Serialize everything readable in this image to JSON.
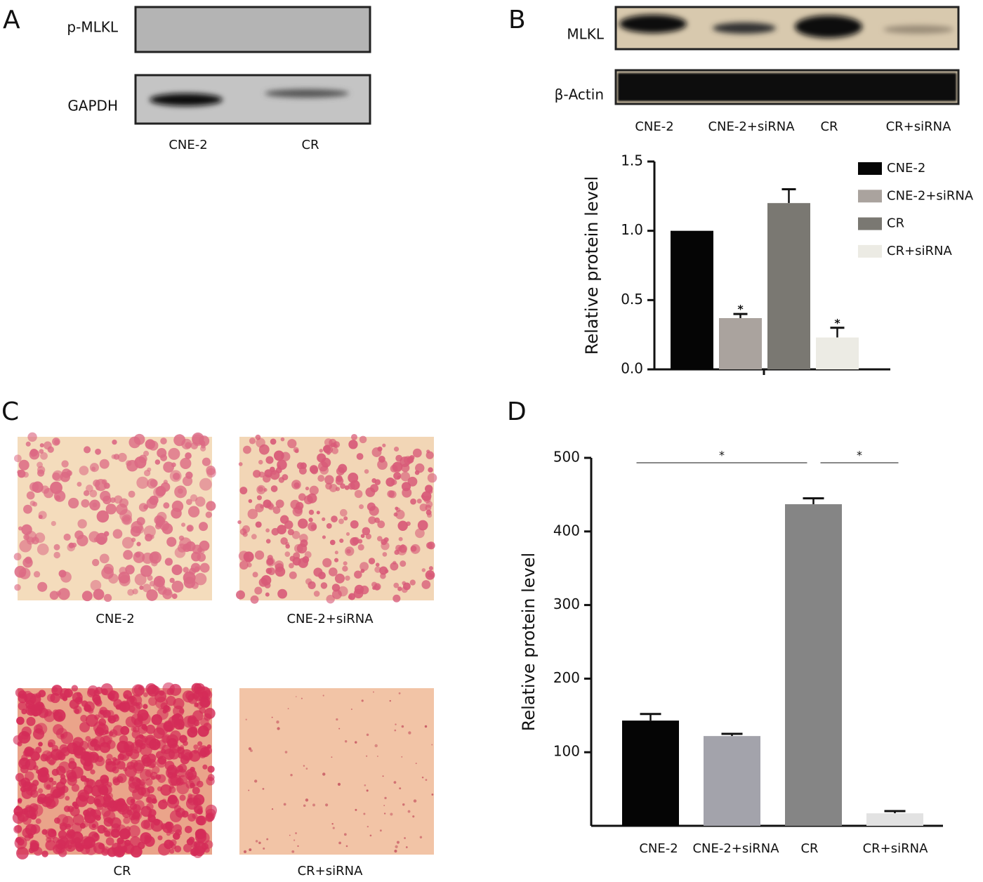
{
  "panels": {
    "A": {
      "letter": "A",
      "blots": [
        "p-MLKL",
        "GAPDH"
      ],
      "lanes": [
        "CNE-2",
        "CR"
      ]
    },
    "B": {
      "letter": "B",
      "blots": [
        "MLKL",
        "β-Actin"
      ],
      "lanes": [
        "CNE-2",
        "CNE-2+siRNA",
        "CR",
        "CR+siRNA"
      ]
    },
    "C": {
      "letter": "C",
      "images": [
        "CNE-2",
        "CNE-2+siRNA",
        "CR",
        "CR+siRNA"
      ]
    },
    "D": {
      "letter": "D"
    }
  },
  "chart_data": [
    {
      "type": "bar",
      "ylabel": "Relative protein level",
      "ylim": [
        0,
        1.5
      ],
      "yticks": [
        {
          "value": 0,
          "label": "0.0"
        },
        0.5,
        {
          "value": 1,
          "label": "1.0"
        },
        1.5
      ],
      "legend": "top-right",
      "series": [
        {
          "name": "CNE-2",
          "color": "#050505",
          "values": [
            1.0
          ],
          "errors": [
            0
          ]
        },
        {
          "name": "CNE-2+siRNA",
          "color": "#aaa39e",
          "values": [
            0.37
          ],
          "errors": [
            0.03
          ],
          "annotation": "*"
        },
        {
          "name": "CR",
          "color": "#7a7872",
          "values": [
            1.2
          ],
          "errors": [
            0.1
          ]
        },
        {
          "name": "CR+siRNA",
          "color": "#ecebe4",
          "values": [
            0.23
          ],
          "errors": [
            0.07
          ],
          "annotation": "*"
        }
      ]
    },
    {
      "type": "bar",
      "ylabel": "Relative protein level",
      "categories": [
        "CNE-2",
        "CNE-2+siRNA",
        "CR",
        "CR+siRNA"
      ],
      "values": [
        143,
        122,
        437,
        17
      ],
      "errors": [
        9,
        3,
        8,
        3
      ],
      "colors": [
        "#050505",
        "#a3a3ab",
        "#858585",
        "#e2e2e2"
      ],
      "ylim": [
        0,
        500
      ],
      "yticks": [
        100,
        200,
        300,
        400,
        500
      ],
      "significance": [
        {
          "label": "*",
          "from": 0,
          "to": 2
        },
        {
          "label": "*",
          "from": 2,
          "to": 3
        }
      ]
    }
  ]
}
